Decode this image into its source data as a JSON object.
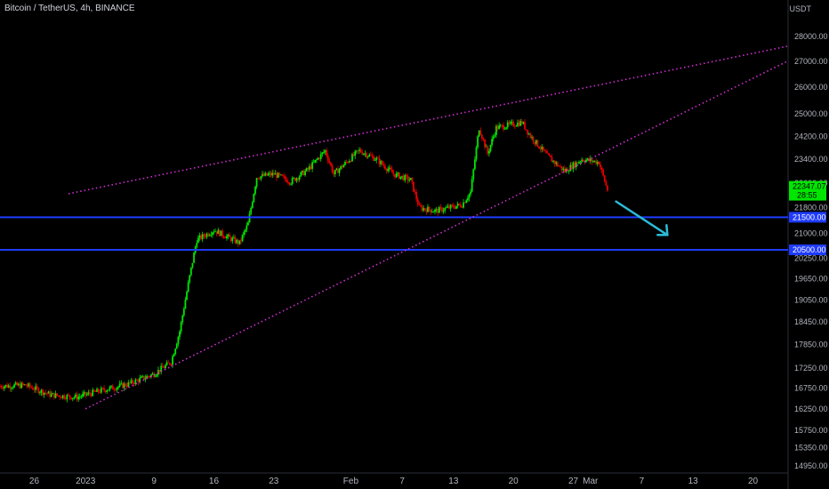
{
  "header": {
    "title": "Bitcoin / TetherUS, 4h, BINANCE",
    "currency": "USDT"
  },
  "colors": {
    "background": "#000000",
    "up": "#00e600",
    "down": "#e60000",
    "support_line": "#1f3bff",
    "trendline": "#d12ed1",
    "arrow": "#2bbcd8",
    "axis_text": "#b2b5be"
  },
  "chart_data": {
    "type": "candlestick",
    "symbol": "BTCUSDT",
    "timeframe": "4h",
    "exchange": "BINANCE",
    "y_axis": {
      "scale": "log",
      "range": [
        14800,
        29000
      ],
      "ticks": [
        28000,
        27000,
        26000,
        25000,
        24200,
        23400,
        22600,
        21800,
        21000,
        20250,
        19650,
        19050,
        18450,
        17850,
        17250,
        16750,
        16250,
        15750,
        15350,
        14950
      ],
      "tick_labels": [
        "28000.00",
        "27000.00",
        "26000.00",
        "25000.00",
        "24200.00",
        "23400.00",
        "22600.00",
        "21800.00",
        "21000.00",
        "20250.00",
        "19650.00",
        "19050.00",
        "18450.00",
        "17850.00",
        "17250.00",
        "16750.00",
        "16250.00",
        "15750.00",
        "15350.00",
        "14950.00"
      ]
    },
    "x_axis": {
      "range": [
        "2022-12-22",
        "2023-03-24"
      ],
      "ticks": [
        {
          "date": "2022-12-26",
          "label": "26"
        },
        {
          "date": "2023-01-01",
          "label": "2023"
        },
        {
          "date": "2023-01-09",
          "label": "9"
        },
        {
          "date": "2023-01-16",
          "label": "16"
        },
        {
          "date": "2023-01-23",
          "label": "23"
        },
        {
          "date": "2023-02-01",
          "label": "Feb"
        },
        {
          "date": "2023-02-07",
          "label": "7"
        },
        {
          "date": "2023-02-13",
          "label": "13"
        },
        {
          "date": "2023-02-20",
          "label": "20"
        },
        {
          "date": "2023-02-27",
          "label": "27"
        },
        {
          "date": "2023-03-01",
          "label": "Mar"
        },
        {
          "date": "2023-03-07",
          "label": "7"
        },
        {
          "date": "2023-03-13",
          "label": "13"
        },
        {
          "date": "2023-03-20",
          "label": "20"
        }
      ]
    },
    "price_path": [
      {
        "date": "2022-12-22",
        "close": 16800
      },
      {
        "date": "2022-12-25",
        "close": 16820
      },
      {
        "date": "2022-12-28",
        "close": 16580
      },
      {
        "date": "2022-12-31",
        "close": 16530
      },
      {
        "date": "2023-01-03",
        "close": 16700
      },
      {
        "date": "2023-01-06",
        "close": 16850
      },
      {
        "date": "2023-01-09",
        "close": 17100
      },
      {
        "date": "2023-01-11",
        "close": 17400
      },
      {
        "date": "2023-01-12",
        "close": 18200
      },
      {
        "date": "2023-01-13",
        "close": 19500
      },
      {
        "date": "2023-01-14",
        "close": 20800
      },
      {
        "date": "2023-01-16",
        "close": 21100
      },
      {
        "date": "2023-01-19",
        "close": 20700
      },
      {
        "date": "2023-01-20",
        "close": 21300
      },
      {
        "date": "2023-01-21",
        "close": 22800
      },
      {
        "date": "2023-01-23",
        "close": 22900
      },
      {
        "date": "2023-01-25",
        "close": 22650
      },
      {
        "date": "2023-01-27",
        "close": 23050
      },
      {
        "date": "2023-01-29",
        "close": 23700
      },
      {
        "date": "2023-01-30",
        "close": 22900
      },
      {
        "date": "2023-02-02",
        "close": 23700
      },
      {
        "date": "2023-02-04",
        "close": 23400
      },
      {
        "date": "2023-02-06",
        "close": 22900
      },
      {
        "date": "2023-02-08",
        "close": 22700
      },
      {
        "date": "2023-02-09",
        "close": 21800
      },
      {
        "date": "2023-02-11",
        "close": 21700
      },
      {
        "date": "2023-02-14",
        "close": 21900
      },
      {
        "date": "2023-02-15",
        "close": 22300
      },
      {
        "date": "2023-02-16",
        "close": 24500
      },
      {
        "date": "2023-02-17",
        "close": 23600
      },
      {
        "date": "2023-02-18",
        "close": 24500
      },
      {
        "date": "2023-02-21",
        "close": 24700
      },
      {
        "date": "2023-02-22",
        "close": 24200
      },
      {
        "date": "2023-02-24",
        "close": 23500
      },
      {
        "date": "2023-02-26",
        "close": 23000
      },
      {
        "date": "2023-02-28",
        "close": 23400
      },
      {
        "date": "2023-03-02",
        "close": 23300
      },
      {
        "date": "2023-03-03",
        "close": 22347
      }
    ],
    "current_price": {
      "value": 22347.07,
      "label": "22347.07",
      "countdown": "28:55"
    },
    "horizontal_levels": [
      {
        "value": 21500,
        "label": "21500.00"
      },
      {
        "value": 20500,
        "label": "20500.00"
      }
    ],
    "trendlines": [
      {
        "name": "upper channel",
        "from": {
          "date": "2022-12-30",
          "price": 22250
        },
        "to": {
          "date": "2023-03-24",
          "price": 27600
        },
        "style": "dotted"
      },
      {
        "name": "lower channel",
        "from": {
          "date": "2023-01-01",
          "price": 16250
        },
        "to": {
          "date": "2023-03-24",
          "price": 27000
        },
        "style": "dotted"
      }
    ],
    "annotation_arrow": {
      "from": {
        "date": "2023-03-04",
        "price": 22000
      },
      "to": {
        "date": "2023-03-10",
        "price": 20950
      },
      "direction": "down"
    },
    "grid": false,
    "legend": "none"
  }
}
